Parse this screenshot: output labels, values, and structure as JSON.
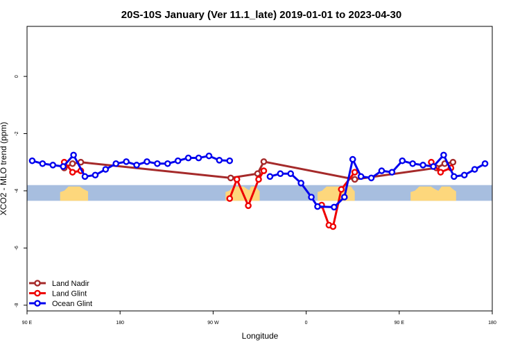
{
  "chart_data": {
    "type": "line",
    "title": "20S-10S January (Ver 11.1_late)   2019-01-01 to 2023-04-30",
    "xlabel": "Longitude",
    "ylabel": "XCO2 - MLO trend (ppm)",
    "x_ticks": [
      {
        "value": 90,
        "label": "90 E"
      },
      {
        "value": 180,
        "label": "180"
      },
      {
        "value": 270,
        "label": "90 W"
      },
      {
        "value": 360,
        "label": "0"
      },
      {
        "value": 450,
        "label": "90 E"
      },
      {
        "value": 540,
        "label": "180"
      }
    ],
    "y_ticks": [
      0,
      -2,
      -4,
      -6,
      -8
    ],
    "xlim": [
      90,
      540
    ],
    "ylim": [
      -8.2,
      1.75
    ],
    "grid": false,
    "legend_position": "bottom-left",
    "land_band": {
      "y_top": -3.8,
      "y_bottom": -4.35,
      "ocean_color": "#a7bedf",
      "land_color": "#fdd77c"
    },
    "land_segments": [
      [
        122,
        149
      ],
      [
        282,
        307
      ],
      [
        303,
        315
      ],
      [
        371,
        400
      ],
      [
        395,
        407
      ],
      [
        461,
        489
      ],
      [
        485,
        505
      ]
    ],
    "series": [
      {
        "name": "Land Nadir",
        "color": "#a52a2a",
        "points": [
          [
            126,
            -3.2
          ],
          [
            134,
            -3.05
          ],
          [
            142,
            -3.0
          ],
          [
            287,
            -3.55
          ],
          [
            313,
            -3.4
          ],
          [
            319,
            -2.98
          ],
          [
            407,
            -3.6
          ],
          [
            486,
            -3.2
          ],
          [
            494,
            -3.05
          ],
          [
            502,
            -3.0
          ]
        ]
      },
      {
        "name": "Land Glint",
        "color": "#ee0000",
        "points": [
          [
            126,
            -3.0
          ],
          [
            134,
            -3.35
          ],
          [
            142,
            -3.3
          ],
          null,
          [
            286,
            -4.27
          ],
          [
            293,
            -3.6
          ],
          [
            304,
            -4.52
          ],
          [
            314,
            -3.6
          ],
          [
            319,
            -3.3
          ],
          null,
          [
            375,
            -4.5
          ],
          [
            382,
            -5.2
          ],
          [
            386,
            -5.25
          ],
          [
            394,
            -3.95
          ],
          [
            407,
            -3.35
          ],
          null,
          [
            481,
            -3.0
          ],
          [
            490,
            -3.35
          ],
          [
            500,
            -3.2
          ]
        ]
      },
      {
        "name": "Ocean Glint",
        "color": "#0000ee",
        "points": [
          [
            95,
            -2.95
          ],
          [
            105,
            -3.05
          ],
          [
            115,
            -3.1
          ],
          [
            125,
            -3.15
          ],
          [
            135,
            -2.75
          ],
          [
            146,
            -3.5
          ],
          [
            156,
            -3.45
          ],
          [
            166,
            -3.25
          ],
          [
            176,
            -3.05
          ],
          [
            186,
            -2.98
          ],
          [
            196,
            -3.1
          ],
          [
            206,
            -2.98
          ],
          [
            216,
            -3.05
          ],
          [
            226,
            -3.05
          ],
          [
            236,
            -2.95
          ],
          [
            246,
            -2.85
          ],
          [
            256,
            -2.85
          ],
          [
            266,
            -2.78
          ],
          [
            276,
            -2.93
          ],
          [
            286,
            -2.95
          ],
          null,
          [
            325,
            -3.5
          ],
          [
            335,
            -3.4
          ],
          [
            345,
            -3.4
          ],
          [
            355,
            -3.73
          ],
          [
            365,
            -4.22
          ],
          [
            371,
            -4.55
          ],
          [
            387,
            -4.57
          ],
          [
            397,
            -4.22
          ],
          [
            405,
            -2.9
          ],
          [
            413,
            -3.5
          ],
          [
            423,
            -3.55
          ],
          [
            433,
            -3.3
          ],
          [
            443,
            -3.35
          ],
          [
            453,
            -2.95
          ],
          [
            463,
            -3.05
          ],
          [
            473,
            -3.1
          ],
          [
            483,
            -3.15
          ],
          [
            493,
            -2.75
          ],
          [
            503,
            -3.5
          ],
          [
            513,
            -3.45
          ],
          [
            523,
            -3.25
          ],
          [
            533,
            -3.05
          ]
        ]
      }
    ]
  }
}
